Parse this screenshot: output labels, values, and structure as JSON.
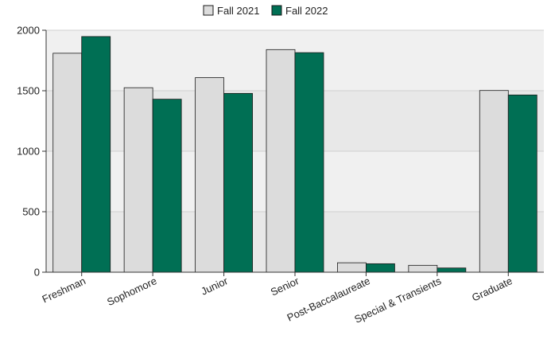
{
  "chart_data": {
    "type": "bar",
    "categories": [
      "Freshman",
      "Sophomore",
      "Junior",
      "Senior",
      "Post-Baccalaureate",
      "Special & Transients",
      "Graduate"
    ],
    "series": [
      {
        "name": "Fall 2021",
        "values": [
          1810,
          1525,
          1608,
          1840,
          78,
          57,
          1502
        ],
        "color": "#dcdcdc"
      },
      {
        "name": "Fall 2022",
        "values": [
          1948,
          1430,
          1478,
          1815,
          70,
          35,
          1465
        ],
        "color": "#006f54"
      }
    ],
    "ylim": [
      0,
      2000
    ],
    "yticks": [
      "0",
      "500",
      "1000",
      "1500",
      "2000"
    ],
    "title": "",
    "xlabel": "",
    "ylabel": "",
    "legend": "top-center",
    "grid": true,
    "band_colors": [
      "#e8e8e8",
      "#f0f0f0"
    ]
  }
}
